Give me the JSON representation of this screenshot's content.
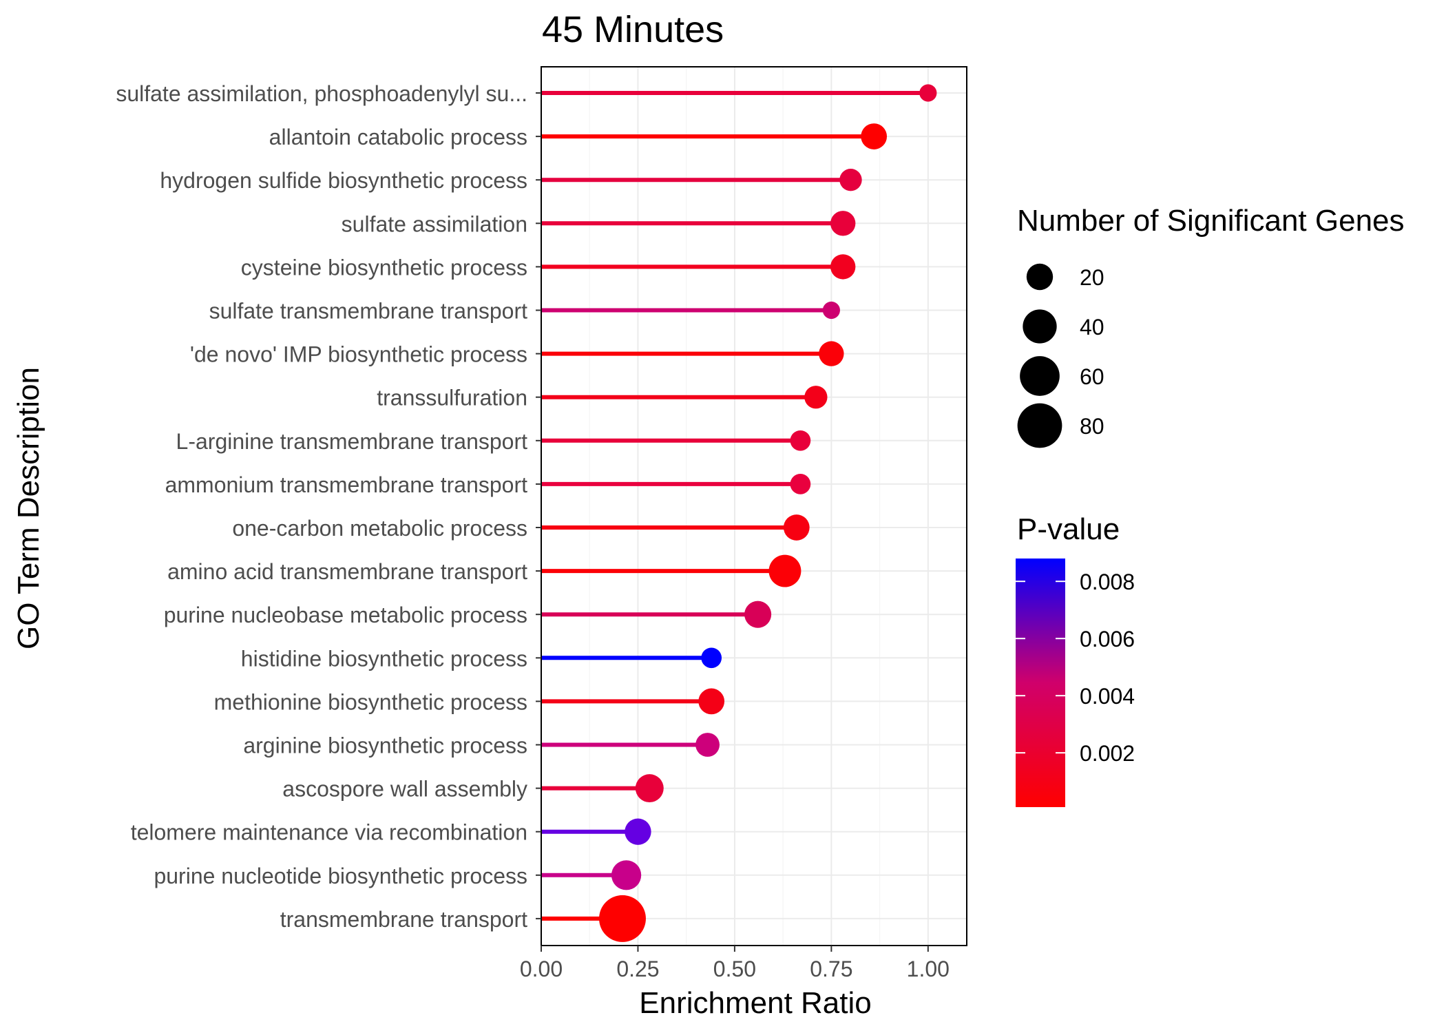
{
  "chart_data": {
    "type": "lollipop",
    "title": "45 Minutes",
    "xlabel": "Enrichment Ratio",
    "ylabel": "GO Term Description",
    "xlim": [
      0,
      1.1
    ],
    "x_ticks": [
      "0.00",
      "0.25",
      "0.50",
      "0.75",
      "1.00"
    ],
    "grid": true,
    "legend_position": "right",
    "size_legend": {
      "title": "Number of Significant Genes",
      "entries": [
        "20",
        "40",
        "60",
        "80"
      ]
    },
    "color_legend": {
      "title": "P-value",
      "ticks": [
        "0.008",
        "0.006",
        "0.004",
        "0.002"
      ],
      "low_color": "#ff0000",
      "high_color": "#0000ff"
    },
    "terms": [
      {
        "label": "sulfate assimilation, phosphoadenylyl su...",
        "ratio": 1.0,
        "genes": 5,
        "pvalue": 0.0025,
        "color": "#e8003a"
      },
      {
        "label": "allantoin catabolic process",
        "ratio": 0.86,
        "genes": 19,
        "pvalue": 0.0003,
        "color": "#fe0000"
      },
      {
        "label": "hydrogen sulfide biosynthetic process",
        "ratio": 0.8,
        "genes": 12,
        "pvalue": 0.0026,
        "color": "#e5003e"
      },
      {
        "label": "sulfate assimilation",
        "ratio": 0.78,
        "genes": 17,
        "pvalue": 0.0024,
        "color": "#e8003a"
      },
      {
        "label": "cysteine biosynthetic process",
        "ratio": 0.78,
        "genes": 17,
        "pvalue": 0.0013,
        "color": "#f2001f"
      },
      {
        "label": "sulfate transmembrane transport",
        "ratio": 0.75,
        "genes": 5,
        "pvalue": 0.0046,
        "color": "#cd0070"
      },
      {
        "label": "'de novo' IMP biosynthetic process",
        "ratio": 0.75,
        "genes": 17,
        "pvalue": 0.0005,
        "color": "#fb0008"
      },
      {
        "label": "transsulfuration",
        "ratio": 0.71,
        "genes": 13,
        "pvalue": 0.0012,
        "color": "#f30019"
      },
      {
        "label": "L-arginine transmembrane transport",
        "ratio": 0.67,
        "genes": 9,
        "pvalue": 0.0025,
        "color": "#e8003a"
      },
      {
        "label": "ammonium transmembrane transport",
        "ratio": 0.67,
        "genes": 9,
        "pvalue": 0.0023,
        "color": "#e9003e"
      },
      {
        "label": "one-carbon metabolic process",
        "ratio": 0.66,
        "genes": 19,
        "pvalue": 0.0008,
        "color": "#f70011"
      },
      {
        "label": "amino acid transmembrane transport",
        "ratio": 0.63,
        "genes": 35,
        "pvalue": 0.0003,
        "color": "#fc0006"
      },
      {
        "label": "purine nucleobase metabolic process",
        "ratio": 0.56,
        "genes": 21,
        "pvalue": 0.0039,
        "color": "#d80057"
      },
      {
        "label": "histidine biosynthetic process",
        "ratio": 0.44,
        "genes": 9,
        "pvalue": 0.0086,
        "color": "#0000ff"
      },
      {
        "label": "methionine biosynthetic process",
        "ratio": 0.44,
        "genes": 19,
        "pvalue": 0.0011,
        "color": "#f40016"
      },
      {
        "label": "arginine biosynthetic process",
        "ratio": 0.43,
        "genes": 15,
        "pvalue": 0.0047,
        "color": "#cd007b"
      },
      {
        "label": "ascospore wall assembly",
        "ratio": 0.28,
        "genes": 24,
        "pvalue": 0.0024,
        "color": "#e8003a"
      },
      {
        "label": "telomere maintenance via recombination",
        "ratio": 0.25,
        "genes": 20,
        "pvalue": 0.0073,
        "color": "#6500e2"
      },
      {
        "label": "purine nucleotide biosynthetic process",
        "ratio": 0.22,
        "genes": 28,
        "pvalue": 0.005,
        "color": "#c8008a"
      },
      {
        "label": "transmembrane transport",
        "ratio": 0.21,
        "genes": 90,
        "pvalue": 0.0001,
        "color": "#fe0000"
      }
    ]
  }
}
